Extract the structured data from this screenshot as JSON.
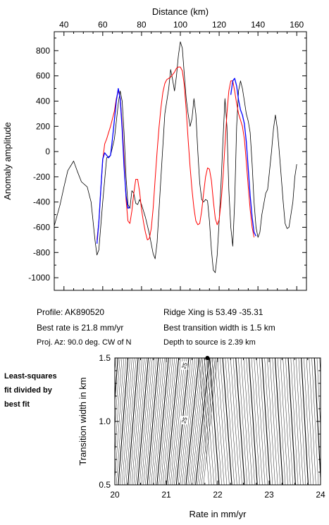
{
  "chart_data": [
    {
      "type": "line",
      "xlabel": "Distance (km)",
      "ylabel": "Anomaly amplitude",
      "xlim": [
        35,
        165
      ],
      "ylim": [
        -1100,
        950
      ],
      "xticks": [
        40,
        60,
        80,
        100,
        120,
        140,
        160
      ],
      "yticks": [
        -1000,
        -800,
        -600,
        -400,
        -200,
        0,
        200,
        400,
        600,
        800
      ],
      "series": [
        {
          "color": "#000000",
          "points": [
            [
              35,
              -590
            ],
            [
              38,
              -420
            ],
            [
              40,
              -280
            ],
            [
              42,
              -150
            ],
            [
              44,
              -100
            ],
            [
              45,
              -75
            ],
            [
              47,
              -160
            ],
            [
              49,
              -240
            ],
            [
              52,
              -280
            ],
            [
              54,
              -400
            ],
            [
              56,
              -700
            ],
            [
              57,
              -820
            ],
            [
              58,
              -780
            ],
            [
              60,
              -400
            ],
            [
              62,
              -50
            ],
            [
              64,
              -30
            ],
            [
              66,
              100
            ],
            [
              68,
              380
            ],
            [
              69,
              480
            ],
            [
              70,
              400
            ],
            [
              71,
              150
            ],
            [
              72,
              -200
            ],
            [
              73,
              -420
            ],
            [
              74,
              -450
            ],
            [
              75,
              -310
            ],
            [
              76,
              -330
            ],
            [
              77,
              -410
            ],
            [
              78,
              -420
            ],
            [
              79,
              -380
            ],
            [
              80,
              -420
            ],
            [
              82,
              -520
            ],
            [
              84,
              -650
            ],
            [
              86,
              -810
            ],
            [
              87,
              -850
            ],
            [
              88,
              -720
            ],
            [
              90,
              -200
            ],
            [
              92,
              300
            ],
            [
              94,
              500
            ],
            [
              95,
              650
            ],
            [
              96,
              570
            ],
            [
              97,
              480
            ],
            [
              98,
              600
            ],
            [
              99,
              760
            ],
            [
              100,
              870
            ],
            [
              101,
              820
            ],
            [
              102,
              620
            ],
            [
              103,
              420
            ],
            [
              104,
              300
            ],
            [
              105,
              200
            ],
            [
              106,
              260
            ],
            [
              107,
              420
            ],
            [
              108,
              300
            ],
            [
              109,
              0
            ],
            [
              110,
              -250
            ],
            [
              111,
              -380
            ],
            [
              112,
              -400
            ],
            [
              113,
              -380
            ],
            [
              114,
              -390
            ],
            [
              115,
              -550
            ],
            [
              116,
              -780
            ],
            [
              117,
              -940
            ],
            [
              118,
              -960
            ],
            [
              119,
              -820
            ],
            [
              120,
              -550
            ],
            [
              121,
              -250
            ],
            [
              122,
              100
            ],
            [
              123,
              420
            ],
            [
              124,
              200
            ],
            [
              125,
              -300
            ],
            [
              126,
              -600
            ],
            [
              127,
              -750
            ],
            [
              128,
              -400
            ],
            [
              129,
              200
            ],
            [
              130,
              480
            ],
            [
              131,
              560
            ],
            [
              132,
              500
            ],
            [
              133,
              400
            ],
            [
              134,
              300
            ],
            [
              135,
              240
            ],
            [
              136,
              150
            ],
            [
              137,
              -100
            ],
            [
              138,
              -400
            ],
            [
              139,
              -600
            ],
            [
              140,
              -680
            ],
            [
              141,
              -640
            ],
            [
              142,
              -500
            ],
            [
              144,
              -330
            ],
            [
              145,
              -300
            ],
            [
              147,
              0
            ],
            [
              148,
              180
            ],
            [
              149,
              290
            ],
            [
              150,
              180
            ],
            [
              151,
              0
            ],
            [
              152,
              -200
            ],
            [
              153,
              -400
            ],
            [
              154,
              -570
            ],
            [
              155,
              -610
            ],
            [
              156,
              -600
            ],
            [
              158,
              -400
            ],
            [
              159,
              -200
            ],
            [
              160,
              -100
            ]
          ]
        },
        {
          "color": "#ff0000",
          "points": [
            [
              57,
              -700
            ],
            [
              58,
              -560
            ],
            [
              59,
              -300
            ],
            [
              60,
              -70
            ],
            [
              61,
              60
            ],
            [
              62,
              100
            ],
            [
              63,
              150
            ],
            [
              64,
              200
            ],
            [
              66,
              320
            ],
            [
              67,
              420
            ],
            [
              68,
              480
            ],
            [
              69,
              430
            ],
            [
              70,
              220
            ],
            [
              71,
              -50
            ],
            [
              72,
              -380
            ],
            [
              73,
              -550
            ],
            [
              74,
              -570
            ],
            [
              75,
              -470
            ],
            [
              76,
              -330
            ],
            [
              77,
              -220
            ],
            [
              78,
              -220
            ],
            [
              79,
              -320
            ],
            [
              80,
              -460
            ],
            [
              81,
              -560
            ],
            [
              82,
              -640
            ],
            [
              83,
              -700
            ],
            [
              84,
              -690
            ],
            [
              85,
              -610
            ],
            [
              86,
              -450
            ],
            [
              87,
              -220
            ],
            [
              88,
              0
            ],
            [
              89,
              190
            ],
            [
              90,
              350
            ],
            [
              91,
              470
            ],
            [
              92,
              540
            ],
            [
              93,
              570
            ],
            [
              94,
              580
            ],
            [
              95,
              590
            ],
            [
              96,
              610
            ],
            [
              97,
              630
            ],
            [
              98,
              660
            ],
            [
              99,
              670
            ],
            [
              100,
              670
            ],
            [
              101,
              640
            ],
            [
              102,
              530
            ],
            [
              103,
              330
            ],
            [
              104,
              100
            ],
            [
              105,
              -120
            ],
            [
              106,
              -300
            ],
            [
              107,
              -450
            ],
            [
              108,
              -550
            ],
            [
              109,
              -580
            ],
            [
              110,
              -570
            ],
            [
              111,
              -470
            ],
            [
              112,
              -330
            ],
            [
              113,
              -200
            ],
            [
              114,
              -130
            ],
            [
              115,
              -140
            ],
            [
              116,
              -230
            ],
            [
              117,
              -390
            ],
            [
              118,
              -530
            ],
            [
              119,
              -580
            ],
            [
              120,
              -540
            ],
            [
              121,
              -400
            ],
            [
              122,
              -200
            ],
            [
              123,
              50
            ],
            [
              124,
              300
            ],
            [
              125,
              480
            ],
            [
              126,
              560
            ],
            [
              127,
              560
            ],
            [
              128,
              480
            ],
            [
              129,
              380
            ],
            [
              130,
              300
            ],
            [
              131,
              250
            ],
            [
              132,
              200
            ],
            [
              133,
              100
            ],
            [
              134,
              -80
            ],
            [
              135,
              -280
            ],
            [
              136,
              -460
            ],
            [
              137,
              -600
            ],
            [
              138,
              -680
            ]
          ]
        },
        {
          "color": "#0000ff",
          "segments": [
            [
              [
                57,
                -730
              ],
              [
                58,
                -560
              ],
              [
                59,
                -300
              ],
              [
                60,
                -60
              ],
              [
                61,
                -10
              ],
              [
                62,
                -30
              ],
              [
                63,
                -50
              ],
              [
                64,
                -30
              ],
              [
                65,
                100
              ],
              [
                66,
                250
              ],
              [
                67,
                400
              ],
              [
                68,
                500
              ],
              [
                69,
                420
              ],
              [
                70,
                180
              ],
              [
                71,
                -120
              ],
              [
                72,
                -350
              ],
              [
                73,
                -450
              ],
              [
                74,
                -440
              ]
            ],
            [
              [
                126,
                450
              ],
              [
                127,
                560
              ],
              [
                128,
                580
              ],
              [
                129,
                520
              ],
              [
                130,
                410
              ],
              [
                131,
                330
              ],
              [
                132,
                290
              ],
              [
                133,
                220
              ],
              [
                134,
                80
              ],
              [
                135,
                -140
              ],
              [
                136,
                -350
              ],
              [
                137,
                -520
              ],
              [
                138,
                -640
              ],
              [
                139,
                -670
              ]
            ]
          ]
        }
      ]
    },
    {
      "type": "contour",
      "xlabel": "Rate in mm/yr",
      "ylabel": "Transition width in km",
      "xlim": [
        20,
        24
      ],
      "ylim": [
        0.5,
        1.5
      ],
      "xticks": [
        20,
        21,
        22,
        23,
        24
      ],
      "yticks": [
        0.5,
        1.0,
        1.5
      ],
      "best_fit": [
        21.8,
        1.5
      ],
      "contour_labels": [
        "25",
        "25"
      ]
    }
  ],
  "profile_info": {
    "profile": "Profile: AK890520",
    "best_rate": "Best rate is 21.8 mm/yr",
    "projection": "Proj. Az: 90.0 deg. CW of N",
    "ridge_xing": "Ridge Xing is 53.49 -35.31",
    "best_width": "Best transition width is 1.5 km",
    "depth": "Depth to source is   2.39 km"
  },
  "side_note": {
    "line1": "Least-squares",
    "line2": "fit divided by",
    "line3": "best fit"
  }
}
